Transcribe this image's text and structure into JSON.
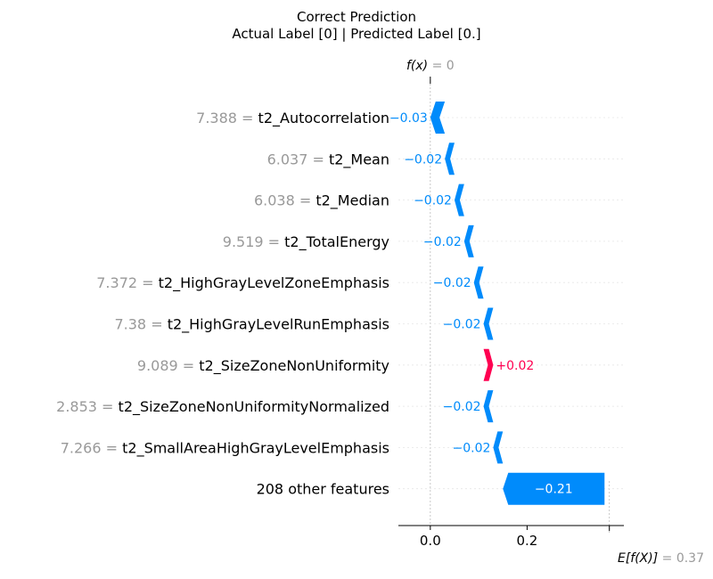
{
  "header": {
    "title": "Correct Prediction",
    "subtitle": "Actual Label [0] | Predicted Label [0.]"
  },
  "chart_data": {
    "type": "bar",
    "subtype": "shap-waterfall",
    "f_x": {
      "label": "f(x)",
      "value_text": "= 0",
      "value": 0.0
    },
    "expected": {
      "label": "E[f(X)]",
      "value_text": "= 0.37",
      "value": 0.37
    },
    "xlim": [
      -0.066,
      0.4
    ],
    "xticks": [
      0.0,
      0.2
    ],
    "xtick_labels": [
      "0.0",
      "0.2"
    ],
    "grid": false,
    "colors": {
      "negative": "#008bfb",
      "positive": "#ff0051",
      "value_gray": "#999999",
      "label": "#000000"
    },
    "rows": [
      {
        "value_text": "7.388",
        "feature": "t2_Autocorrelation",
        "contribution": -0.03,
        "label": "−0.03"
      },
      {
        "value_text": "6.037",
        "feature": "t2_Mean",
        "contribution": -0.02,
        "label": "−0.02"
      },
      {
        "value_text": "6.038",
        "feature": "t2_Median",
        "contribution": -0.02,
        "label": "−0.02"
      },
      {
        "value_text": "9.519",
        "feature": "t2_TotalEnergy",
        "contribution": -0.02,
        "label": "−0.02"
      },
      {
        "value_text": "7.372",
        "feature": "t2_HighGrayLevelZoneEmphasis",
        "contribution": -0.02,
        "label": "−0.02"
      },
      {
        "value_text": "7.38",
        "feature": "t2_HighGrayLevelRunEmphasis",
        "contribution": -0.02,
        "label": "−0.02"
      },
      {
        "value_text": "9.089",
        "feature": "t2_SizeZoneNonUniformity",
        "contribution": 0.02,
        "label": "+0.02"
      },
      {
        "value_text": "2.853",
        "feature": "t2_SizeZoneNonUniformityNormalized",
        "contribution": -0.02,
        "label": "−0.02"
      },
      {
        "value_text": "7.266",
        "feature": "t2_SmallAreaHighGrayLevelEmphasis",
        "contribution": -0.02,
        "label": "−0.02"
      },
      {
        "value_text": "",
        "feature": "208 other features",
        "contribution": -0.21,
        "label": "−0.21"
      }
    ]
  }
}
